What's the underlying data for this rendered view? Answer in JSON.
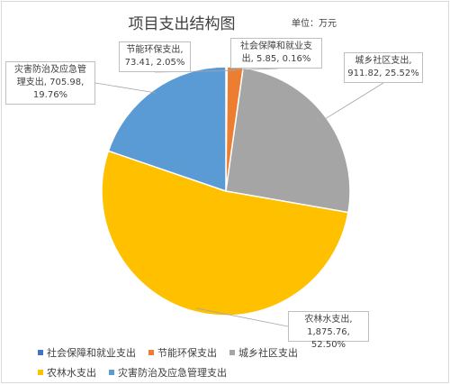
{
  "chart_data": {
    "type": "pie",
    "title": "项目支出结构图",
    "unit_label": "单位：万元",
    "slices": [
      {
        "name": "社会保障和就业支出",
        "value": 5.85,
        "percent": "0.16%",
        "value_label": "5.85",
        "color": "#4472c4",
        "label_lines": [
          "社会保障和就业支",
          "出, 5.85, 0.16%"
        ]
      },
      {
        "name": "节能环保支出",
        "value": 73.41,
        "percent": "2.05%",
        "value_label": "73.41",
        "color": "#ed7d31",
        "label_lines": [
          "节能环保支出,",
          "73.41, 2.05%"
        ]
      },
      {
        "name": "城乡社区支出",
        "value": 911.82,
        "percent": "25.52%",
        "value_label": "911.82",
        "color": "#a5a5a5",
        "label_lines": [
          "城乡社区支出,",
          "911.82, 25.52%"
        ]
      },
      {
        "name": "农林水支出",
        "value": 1875.76,
        "percent": "52.50%",
        "value_label": "1,875.76",
        "color": "#ffc000",
        "label_lines": [
          "农林水支出,",
          "1,875.76, 52.50%"
        ]
      },
      {
        "name": "灾害防治及应急管理支出",
        "value": 705.98,
        "percent": "19.76%",
        "value_label": "705.98",
        "color": "#5b9bd5",
        "label_lines": [
          "灾害防治及应急管",
          "理支出, 705.98,",
          "19.76%"
        ]
      }
    ],
    "legend_placement": "bottom"
  }
}
